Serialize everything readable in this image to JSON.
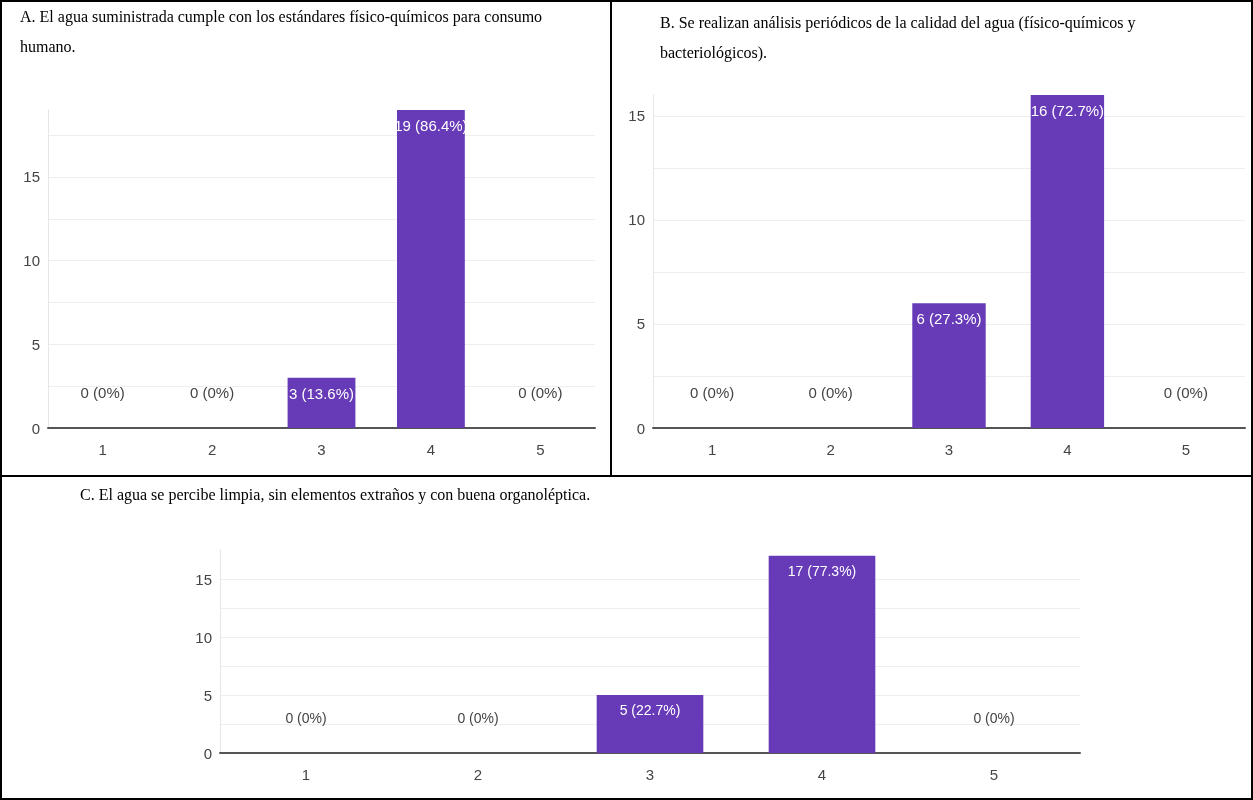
{
  "chart_data": [
    {
      "type": "bar",
      "title": "A. El agua suministrada cumple con los estándares físico-químicos para consumo humano.",
      "categories": [
        "1",
        "2",
        "3",
        "4",
        "5"
      ],
      "series": [
        {
          "color": "#673ab7",
          "values": [
            0,
            0,
            3,
            19,
            0
          ],
          "value_labels": [
            "0 (0%)",
            "0 (0%)",
            "3 (13.6%)",
            "19 (86.4%)",
            "0 (0%)"
          ]
        }
      ],
      "ylim": [
        0,
        19
      ],
      "yticks": [
        0,
        {
          "value": 2.5,
          "label": null
        },
        5,
        {
          "value": 7.5,
          "label": null
        },
        10,
        {
          "value": 12.5,
          "label": null
        },
        15,
        {
          "value": 17.5,
          "label": null
        }
      ],
      "grid": "y"
    },
    {
      "type": "bar",
      "title": "B. Se realizan análisis periódicos de la calidad del agua (físico-químicos y bacteriológicos).",
      "categories": [
        "1",
        "2",
        "3",
        "4",
        "5"
      ],
      "series": [
        {
          "color": "#673ab7",
          "values": [
            0,
            0,
            6,
            16,
            0
          ],
          "value_labels": [
            "0 (0%)",
            "0 (0%)",
            "6 (27.3%)",
            "16 (72.7%)",
            "0 (0%)"
          ]
        }
      ],
      "ylim": [
        0,
        16
      ],
      "yticks": [
        0,
        {
          "value": 2.5,
          "label": null
        },
        5,
        {
          "value": 7.5,
          "label": null
        },
        10,
        {
          "value": 12.5,
          "label": null
        },
        15
      ],
      "grid": "y"
    },
    {
      "type": "bar",
      "title": "C. El agua se percibe limpia, sin elementos extraños y con buena organoléptica.",
      "categories": [
        "1",
        "2",
        "3",
        "4",
        "5"
      ],
      "series": [
        {
          "color": "#673ab7",
          "values": [
            0,
            0,
            5,
            17,
            0
          ],
          "value_labels": [
            "0 (0%)",
            "0 (0%)",
            "5 (22.7%)",
            "17 (77.3%)",
            "0 (0%)"
          ]
        }
      ],
      "ylim": [
        0,
        17.5
      ],
      "yticks": [
        0,
        {
          "value": 2.5,
          "label": null
        },
        5,
        {
          "value": 7.5,
          "label": null
        },
        10,
        {
          "value": 12.5,
          "label": null
        },
        15
      ],
      "grid": "y"
    }
  ]
}
